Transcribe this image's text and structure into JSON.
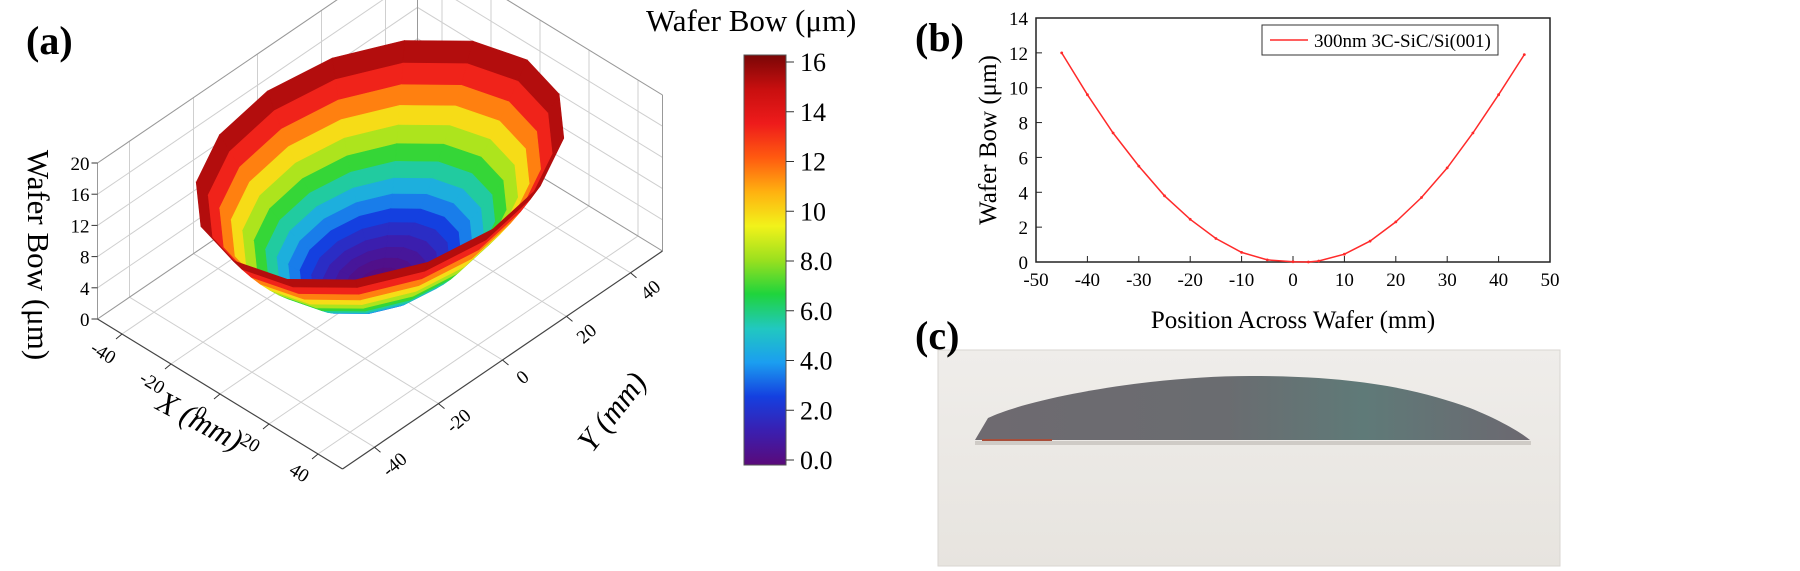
{
  "panels": {
    "a": "(a)",
    "b": "(b)",
    "c": "(c)"
  },
  "chart_data": [
    {
      "type": "surface3d",
      "title": "",
      "colorbar_title": "Wafer Bow (μm)",
      "zlabel": "Wafer Bow (μm)",
      "xlabel": "X (mm)",
      "ylabel": "Y (mm)",
      "x_ticks": [
        "-40",
        "-20",
        "0",
        "20",
        "40"
      ],
      "y_ticks": [
        "-40",
        "-20",
        "0",
        "20",
        "40"
      ],
      "z_ticks": [
        "0",
        "4",
        "8",
        "12",
        "16",
        "20"
      ],
      "zlim": [
        0,
        20
      ],
      "colorbar_ticks": [
        "0.0",
        "2.0",
        "4.0",
        "6.0",
        "8.0",
        "10",
        "12",
        "14",
        "16"
      ],
      "colorbar_range": [
        0,
        16
      ],
      "colormap": [
        "#5a0a7a",
        "#3a1fb0",
        "#1440e0",
        "#1b9ef0",
        "#21c8c0",
        "#1fd43c",
        "#9be01e",
        "#f2f21a",
        "#ffb010",
        "#ff5a10",
        "#ee1b1b",
        "#c80f0f",
        "#7a0606"
      ],
      "surface_model": "paraboloid",
      "max_value": 16,
      "min_value": 0
    },
    {
      "type": "line",
      "title": "",
      "xlabel": "Position Across Wafer (mm)",
      "ylabel": "Wafer Bow (μm)",
      "xlim": [
        -50,
        50
      ],
      "ylim": [
        0,
        14
      ],
      "x_ticks": [
        "-50",
        "-40",
        "-30",
        "-20",
        "-10",
        "0",
        "10",
        "20",
        "30",
        "40",
        "50"
      ],
      "y_ticks": [
        "0",
        "2",
        "4",
        "6",
        "8",
        "10",
        "12",
        "14"
      ],
      "legend_position": "top-right",
      "grid": false,
      "series": [
        {
          "name": "300nm 3C-SiC/Si(001)",
          "color": "#ff2a2a",
          "x": [
            -45,
            -40,
            -35,
            -30,
            -25,
            -20,
            -15,
            -10,
            -5,
            0,
            3,
            5,
            10,
            15,
            20,
            25,
            30,
            35,
            40,
            45
          ],
          "y": [
            12.0,
            9.6,
            7.4,
            5.5,
            3.8,
            2.45,
            1.35,
            0.55,
            0.12,
            0.02,
            0.0,
            0.06,
            0.45,
            1.2,
            2.3,
            3.7,
            5.4,
            7.4,
            9.6,
            11.9
          ]
        }
      ]
    }
  ],
  "photo": {
    "background": "#efedea",
    "wafer_color": "#6f6b72",
    "wafer_edge": "#a84e3a"
  }
}
